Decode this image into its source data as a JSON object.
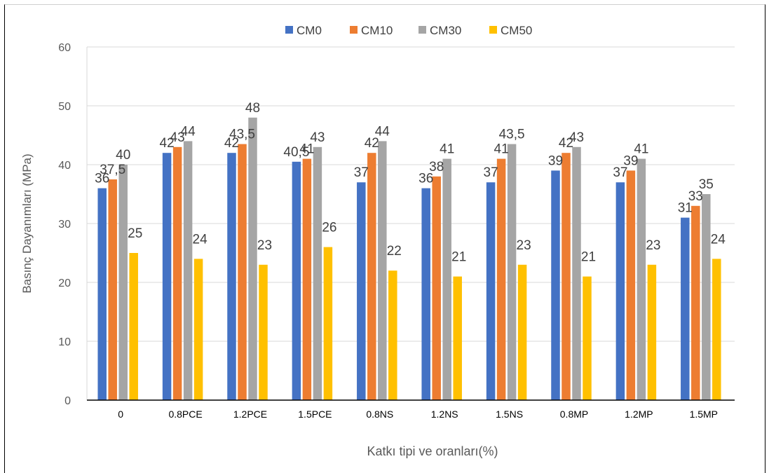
{
  "chart_data": {
    "type": "bar",
    "categories": [
      "0",
      "0.8PCE",
      "1.2PCE",
      "1.5PCE",
      "0.8NS",
      "1.2NS",
      "1.5NS",
      "0.8MP",
      "1.2MP",
      "1.5MP"
    ],
    "series": [
      {
        "name": "CM0",
        "color": "#4472C4",
        "values": [
          36,
          42,
          42,
          40.5,
          37,
          36,
          37,
          39,
          37,
          31
        ],
        "labels": [
          "36",
          "42",
          "42",
          "40,5",
          "37",
          "36",
          "37",
          "39",
          "37",
          "31"
        ]
      },
      {
        "name": "CM10",
        "color": "#ED7D31",
        "values": [
          37.5,
          43,
          43.5,
          41,
          42,
          38,
          41,
          42,
          39,
          33
        ],
        "labels": [
          "37,5",
          "43",
          "43,5",
          "41",
          "42",
          "38",
          "41",
          "42",
          "39",
          "33"
        ]
      },
      {
        "name": "CM30",
        "color": "#A5A5A5",
        "values": [
          40,
          44,
          48,
          43,
          44,
          41,
          43.5,
          43,
          41,
          35
        ],
        "labels": [
          "40",
          "44",
          "48",
          "43",
          "44",
          "41",
          "43,5",
          "43",
          "41",
          "35"
        ]
      },
      {
        "name": "CM50",
        "color": "#FFC000",
        "values": [
          25,
          24,
          23,
          26,
          22,
          21,
          23,
          21,
          23,
          24
        ],
        "labels": [
          "25",
          "24",
          "23",
          "26",
          "22",
          "21",
          "23",
          "21",
          "23",
          "24"
        ]
      }
    ],
    "title": "",
    "xlabel": "Katkı tipi ve oranları(%)",
    "ylabel": "Basınç Dayanımları (MPa)",
    "ylim": [
      0,
      60
    ],
    "yticks": [
      "0",
      "10",
      "20",
      "30",
      "40",
      "50",
      "60"
    ],
    "grid": true,
    "legend_position": "top"
  }
}
